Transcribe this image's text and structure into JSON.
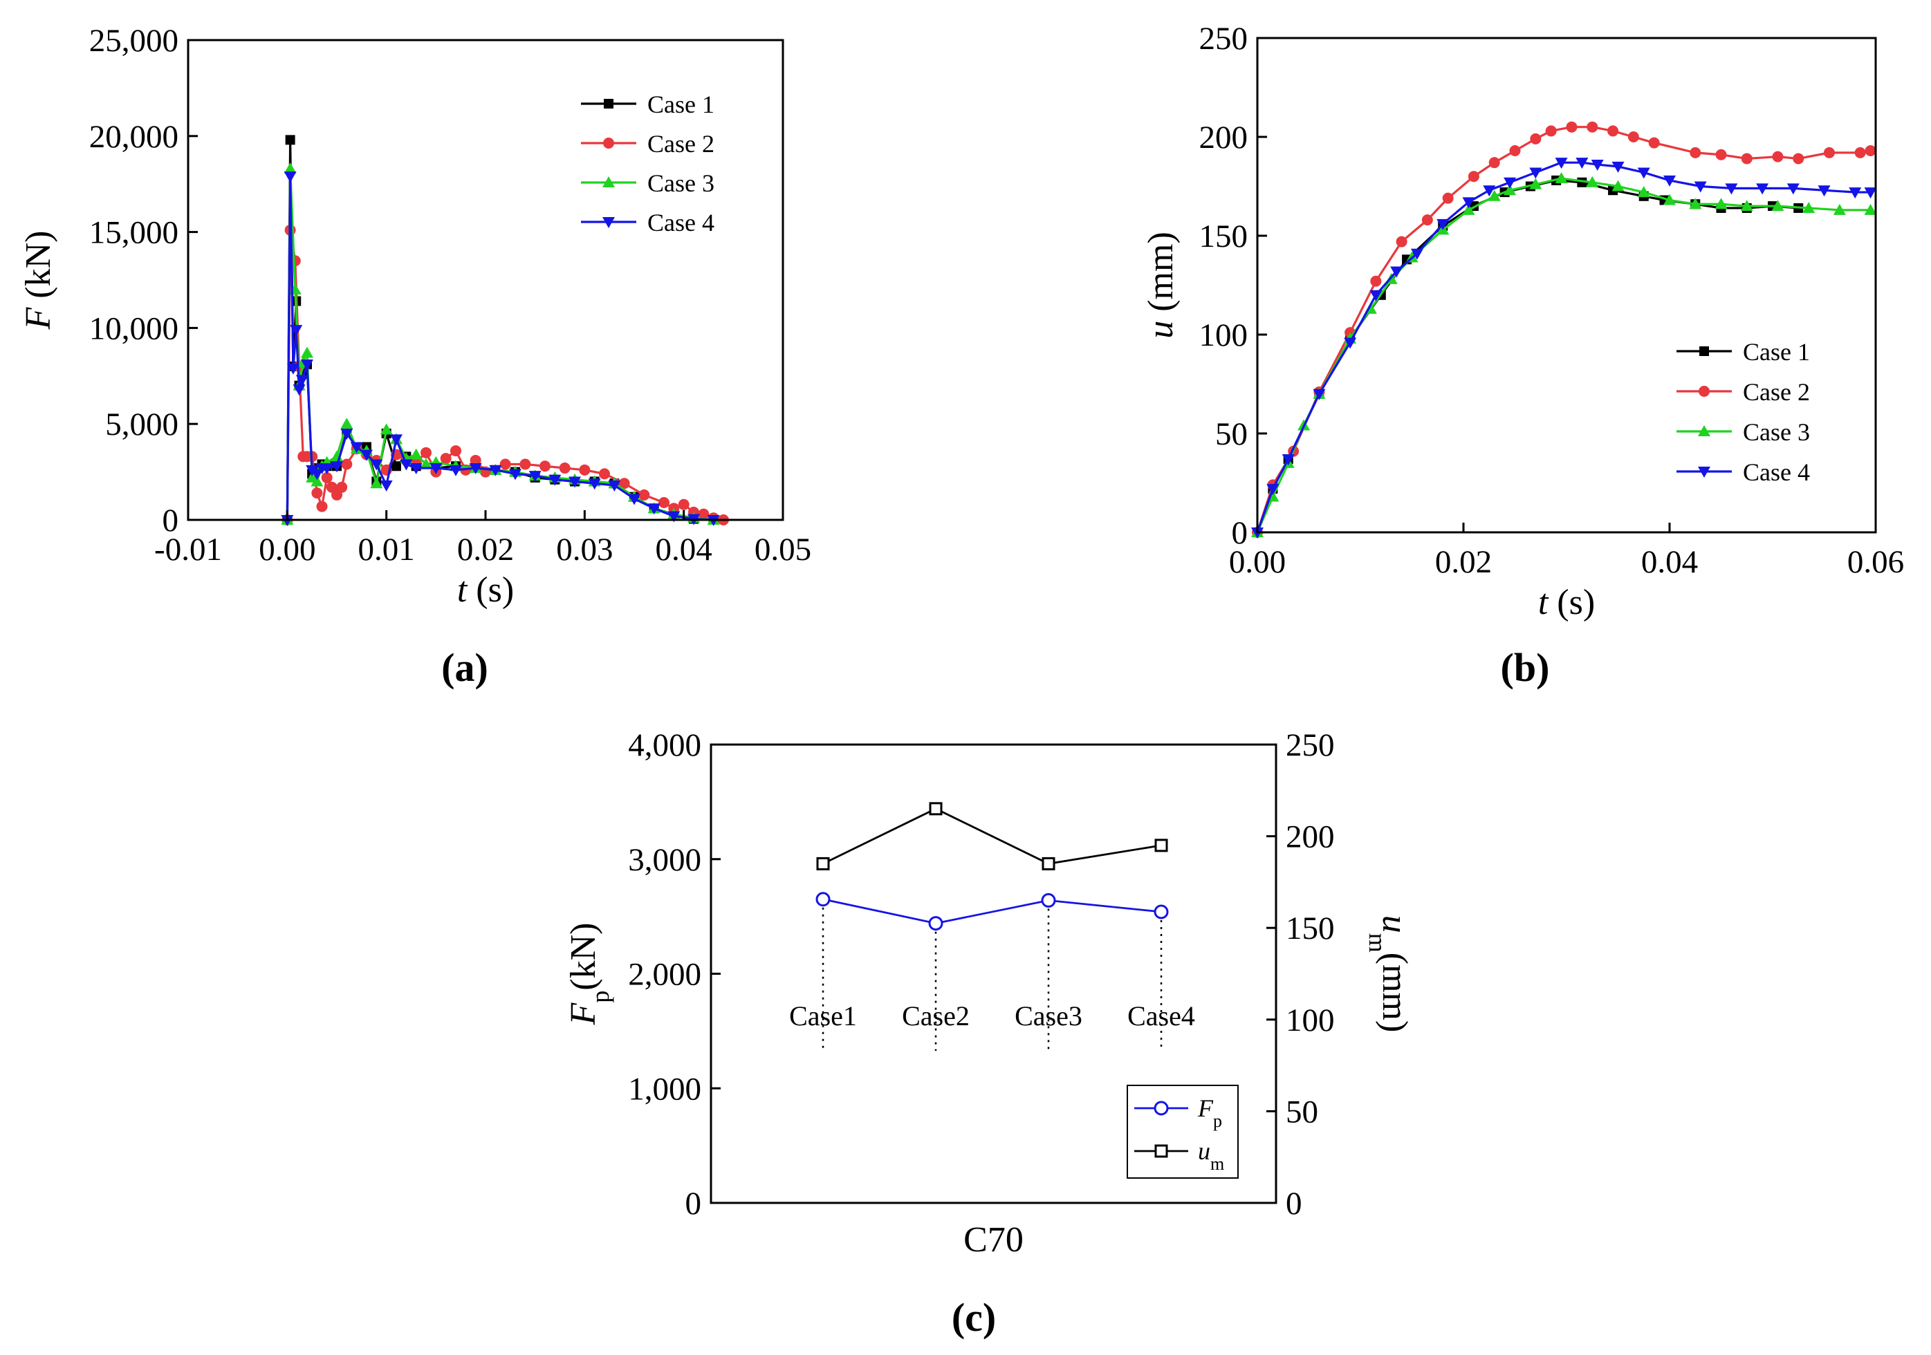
{
  "chart_data": [
    {
      "type": "line",
      "panel_label": "(a)",
      "xlabel": {
        "var": "t",
        "unit": " (s)"
      },
      "ylabel": {
        "var": "F",
        "unit": " (kN)"
      },
      "xlim": [
        -0.01,
        0.05
      ],
      "ylim": [
        0,
        25000
      ],
      "xticks": [
        "-0.01",
        "0.00",
        "0.01",
        "0.02",
        "0.03",
        "0.04",
        "0.05"
      ],
      "yticks": [
        "0",
        "5,000",
        "10,000",
        "15,000",
        "20,000",
        "25,000"
      ],
      "legend_position": "top-right",
      "grid": false,
      "series": [
        {
          "name": "Case 1",
          "color": "#000000",
          "marker": "square",
          "x": [
            0,
            0.0003,
            0.0006,
            0.0009,
            0.0012,
            0.0015,
            0.002,
            0.0025,
            0.003,
            0.0035,
            0.004,
            0.005,
            0.006,
            0.007,
            0.008,
            0.009,
            0.01,
            0.011,
            0.012,
            0.013,
            0.015,
            0.017,
            0.019,
            0.021,
            0.023,
            0.025,
            0.027,
            0.029,
            0.031,
            0.033,
            0.035,
            0.037,
            0.039,
            0.041,
            0.043
          ],
          "y": [
            0,
            19800,
            8000,
            11400,
            7000,
            7600,
            8100,
            2400,
            2700,
            2900,
            2800,
            2800,
            4600,
            3700,
            3800,
            2000,
            4500,
            2800,
            3300,
            2800,
            2700,
            2800,
            2800,
            2600,
            2500,
            2200,
            2100,
            2000,
            2000,
            1900,
            1200,
            600,
            200,
            50,
            0
          ]
        },
        {
          "name": "Case 2",
          "color": "#e8383d",
          "marker": "circle",
          "x": [
            0,
            0.0003,
            0.0008,
            0.0012,
            0.0016,
            0.002,
            0.0025,
            0.003,
            0.0035,
            0.004,
            0.0045,
            0.005,
            0.0055,
            0.006,
            0.007,
            0.008,
            0.009,
            0.01,
            0.011,
            0.012,
            0.013,
            0.014,
            0.015,
            0.016,
            0.017,
            0.018,
            0.019,
            0.02,
            0.022,
            0.024,
            0.026,
            0.028,
            0.03,
            0.032,
            0.034,
            0.036,
            0.038,
            0.039,
            0.04,
            0.041,
            0.042,
            0.043,
            0.044
          ],
          "y": [
            0,
            15100,
            13500,
            8000,
            3300,
            3300,
            3300,
            1400,
            700,
            2200,
            1700,
            1300,
            1700,
            2900,
            3700,
            3400,
            3100,
            2600,
            3400,
            3100,
            3000,
            3500,
            2500,
            3200,
            3600,
            2600,
            3100,
            2500,
            2900,
            2900,
            2800,
            2700,
            2600,
            2400,
            1900,
            1300,
            900,
            600,
            800,
            400,
            300,
            100,
            0
          ]
        },
        {
          "name": "Case 3",
          "color": "#1fd31f",
          "marker": "triangle-up",
          "x": [
            0,
            0.0003,
            0.0008,
            0.0012,
            0.0016,
            0.002,
            0.0025,
            0.003,
            0.0035,
            0.004,
            0.005,
            0.006,
            0.007,
            0.008,
            0.009,
            0.01,
            0.011,
            0.012,
            0.013,
            0.014,
            0.015,
            0.017,
            0.019,
            0.021,
            0.023,
            0.025,
            0.027,
            0.029,
            0.031,
            0.033,
            0.035,
            0.037,
            0.039,
            0.041,
            0.043
          ],
          "y": [
            0,
            18300,
            12000,
            7000,
            8200,
            8700,
            2200,
            2000,
            2800,
            3000,
            3300,
            5000,
            3700,
            3600,
            1900,
            4700,
            4200,
            3200,
            3400,
            2900,
            3000,
            2800,
            2700,
            2600,
            2500,
            2300,
            2200,
            2100,
            2000,
            1900,
            1200,
            600,
            300,
            100,
            0
          ]
        },
        {
          "name": "Case 4",
          "color": "#1414e6",
          "marker": "triangle-down",
          "x": [
            0,
            0.0003,
            0.0006,
            0.0009,
            0.0012,
            0.0015,
            0.002,
            0.0025,
            0.003,
            0.0035,
            0.004,
            0.005,
            0.006,
            0.007,
            0.008,
            0.009,
            0.01,
            0.011,
            0.012,
            0.013,
            0.015,
            0.017,
            0.019,
            0.021,
            0.023,
            0.025,
            0.027,
            0.029,
            0.031,
            0.033,
            0.035,
            0.037,
            0.039,
            0.041,
            0.043
          ],
          "y": [
            0,
            17900,
            7900,
            9900,
            6800,
            7300,
            8100,
            2600,
            2400,
            2700,
            2700,
            2800,
            4500,
            3800,
            3400,
            2900,
            1800,
            4200,
            2900,
            2700,
            2700,
            2600,
            2700,
            2600,
            2400,
            2300,
            2100,
            2000,
            1900,
            1800,
            1100,
            600,
            200,
            50,
            0
          ]
        }
      ]
    },
    {
      "type": "line",
      "panel_label": "(b)",
      "xlabel": {
        "var": "t",
        "unit": " (s)"
      },
      "ylabel": {
        "var": "u",
        "unit": " (mm)"
      },
      "xlim": [
        0,
        0.06
      ],
      "ylim": [
        0,
        250
      ],
      "xticks": [
        "0.00",
        "0.02",
        "0.04",
        "0.06"
      ],
      "yticks": [
        "0",
        "50",
        "100",
        "150",
        "200",
        "250"
      ],
      "legend_position": "center-right",
      "grid": false,
      "series": [
        {
          "name": "Case 1",
          "color": "#000000",
          "marker": "square",
          "x": [
            0,
            0.0015,
            0.003,
            0.006,
            0.009,
            0.012,
            0.0145,
            0.018,
            0.021,
            0.024,
            0.0265,
            0.029,
            0.0315,
            0.0345,
            0.0375,
            0.0395,
            0.0425,
            0.045,
            0.0475,
            0.05,
            0.0525
          ],
          "y": [
            0,
            22,
            37,
            70,
            98,
            120,
            138,
            155,
            165,
            172,
            175,
            178,
            177,
            173,
            170,
            168,
            166,
            164,
            164,
            165,
            164
          ]
        },
        {
          "name": "Case 2",
          "color": "#e8383d",
          "marker": "circle",
          "x": [
            0,
            0.0015,
            0.0035,
            0.006,
            0.009,
            0.0115,
            0.014,
            0.0165,
            0.0185,
            0.021,
            0.023,
            0.025,
            0.027,
            0.0285,
            0.0305,
            0.0325,
            0.0345,
            0.0365,
            0.0385,
            0.0425,
            0.045,
            0.0475,
            0.0505,
            0.0525,
            0.0555,
            0.0585,
            0.0595
          ],
          "y": [
            0,
            24,
            41,
            71,
            101,
            127,
            147,
            158,
            169,
            180,
            187,
            193,
            199,
            203,
            205,
            205,
            203,
            200,
            197,
            192,
            191,
            189,
            190,
            189,
            192,
            192,
            193
          ]
        },
        {
          "name": "Case 3",
          "color": "#1fd31f",
          "marker": "triangle-up",
          "x": [
            0,
            0.0015,
            0.003,
            0.0045,
            0.006,
            0.009,
            0.011,
            0.013,
            0.015,
            0.018,
            0.0205,
            0.023,
            0.0245,
            0.027,
            0.0295,
            0.0325,
            0.035,
            0.0375,
            0.04,
            0.0425,
            0.045,
            0.0475,
            0.0505,
            0.0535,
            0.0565,
            0.0595
          ],
          "y": [
            0,
            18,
            35,
            54,
            70,
            98,
            113,
            128,
            139,
            153,
            163,
            170,
            173,
            176,
            179,
            177,
            175,
            172,
            168,
            166,
            166,
            165,
            165,
            164,
            163,
            163
          ]
        },
        {
          "name": "Case 4",
          "color": "#1414e6",
          "marker": "triangle-down",
          "x": [
            0,
            0.0015,
            0.003,
            0.006,
            0.009,
            0.0115,
            0.0135,
            0.0155,
            0.018,
            0.0205,
            0.0225,
            0.0245,
            0.027,
            0.0295,
            0.0315,
            0.033,
            0.035,
            0.0375,
            0.04,
            0.043,
            0.046,
            0.049,
            0.052,
            0.055,
            0.058,
            0.0595
          ],
          "y": [
            0,
            22,
            37,
            70,
            96,
            120,
            132,
            141,
            156,
            167,
            173,
            177,
            182,
            187,
            187,
            186,
            185,
            182,
            178,
            175,
            174,
            174,
            174,
            173,
            172,
            172
          ]
        }
      ]
    },
    {
      "type": "line",
      "panel_label": "(c)",
      "xlabel": "C70",
      "ylabel_left": {
        "var": "F",
        "sub": "p",
        "unit": "(kN)"
      },
      "ylabel_right": {
        "var": "u",
        "sub": "m",
        "unit": "(mm)"
      },
      "categories": [
        "Case1",
        "Case2",
        "Case3",
        "Case4"
      ],
      "ylim_left": [
        0,
        4000
      ],
      "ylim_right": [
        0,
        250
      ],
      "yticks_left": [
        "0",
        "1,000",
        "2,000",
        "3,000",
        "4,000"
      ],
      "yticks_right": [
        "0",
        "50",
        "100",
        "150",
        "200",
        "250"
      ],
      "legend_position": "bottom-right",
      "series": [
        {
          "name": "Fp",
          "legend_var": "F",
          "legend_sub": "p",
          "axis": "left",
          "color": "#1414e6",
          "marker": "open-circle",
          "values": [
            2650,
            2440,
            2640,
            2540
          ]
        },
        {
          "name": "um",
          "legend_var": "u",
          "legend_sub": "m",
          "axis": "right",
          "color": "#000000",
          "marker": "open-square",
          "values": [
            185,
            215,
            185,
            195
          ]
        }
      ]
    }
  ]
}
